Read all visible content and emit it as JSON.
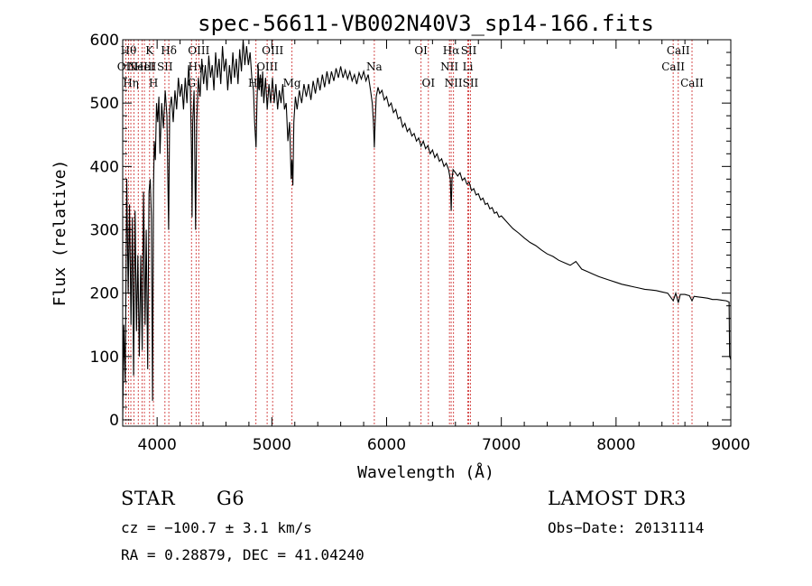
{
  "chart_data": {
    "type": "line",
    "title": "spec-56611-VB002N40V3_sp14-166.fits",
    "xlabel": "Wavelength (Å)",
    "ylabel": "Flux (relative)",
    "xlim": [
      3700,
      9000
    ],
    "ylim": [
      -10,
      600
    ],
    "xticks": [
      4000,
      5000,
      6000,
      7000,
      8000,
      9000
    ],
    "yticks": [
      0,
      100,
      200,
      300,
      400,
      500,
      600
    ],
    "series": [
      {
        "name": "spectrum",
        "points": [
          [
            3700,
            0
          ],
          [
            3710,
            150
          ],
          [
            3722,
            60
          ],
          [
            3735,
            380
          ],
          [
            3748,
            200
          ],
          [
            3760,
            340
          ],
          [
            3772,
            150
          ],
          [
            3785,
            320
          ],
          [
            3795,
            70
          ],
          [
            3808,
            330
          ],
          [
            3820,
            140
          ],
          [
            3832,
            260
          ],
          [
            3845,
            100
          ],
          [
            3858,
            260
          ],
          [
            3870,
            110
          ],
          [
            3882,
            360
          ],
          [
            3895,
            150
          ],
          [
            3905,
            300
          ],
          [
            3918,
            80
          ],
          [
            3930,
            360
          ],
          [
            3940,
            380
          ],
          [
            3950,
            320
          ],
          [
            3960,
            30
          ],
          [
            3968,
            360
          ],
          [
            3975,
            440
          ],
          [
            3985,
            410
          ],
          [
            3995,
            500
          ],
          [
            4005,
            470
          ],
          [
            4015,
            510
          ],
          [
            4025,
            420
          ],
          [
            4040,
            500
          ],
          [
            4055,
            460
          ],
          [
            4070,
            520
          ],
          [
            4085,
            480
          ],
          [
            4100,
            300
          ],
          [
            4110,
            490
          ],
          [
            4125,
            510
          ],
          [
            4140,
            470
          ],
          [
            4155,
            520
          ],
          [
            4170,
            490
          ],
          [
            4185,
            540
          ],
          [
            4200,
            510
          ],
          [
            4215,
            530
          ],
          [
            4230,
            490
          ],
          [
            4245,
            540
          ],
          [
            4260,
            500
          ],
          [
            4275,
            560
          ],
          [
            4290,
            520
          ],
          [
            4300,
            420
          ],
          [
            4305,
            320
          ],
          [
            4310,
            470
          ],
          [
            4322,
            520
          ],
          [
            4335,
            300
          ],
          [
            4345,
            470
          ],
          [
            4360,
            540
          ],
          [
            4375,
            510
          ],
          [
            4390,
            570
          ],
          [
            4405,
            530
          ],
          [
            4420,
            560
          ],
          [
            4435,
            520
          ],
          [
            4450,
            575
          ],
          [
            4465,
            540
          ],
          [
            4480,
            560
          ],
          [
            4495,
            520
          ],
          [
            4510,
            580
          ],
          [
            4525,
            540
          ],
          [
            4540,
            570
          ],
          [
            4555,
            530
          ],
          [
            4570,
            590
          ],
          [
            4585,
            550
          ],
          [
            4600,
            570
          ],
          [
            4615,
            520
          ],
          [
            4630,
            560
          ],
          [
            4645,
            530
          ],
          [
            4660,
            580
          ],
          [
            4675,
            540
          ],
          [
            4690,
            570
          ],
          [
            4705,
            530
          ],
          [
            4720,
            585
          ],
          [
            4735,
            550
          ],
          [
            4750,
            600
          ],
          [
            4765,
            560
          ],
          [
            4780,
            590
          ],
          [
            4795,
            560
          ],
          [
            4810,
            580
          ],
          [
            4825,
            540
          ],
          [
            4840,
            520
          ],
          [
            4850,
            470
          ],
          [
            4862,
            430
          ],
          [
            4870,
            500
          ],
          [
            4880,
            560
          ],
          [
            4890,
            520
          ],
          [
            4900,
            545
          ],
          [
            4910,
            510
          ],
          [
            4920,
            550
          ],
          [
            4930,
            500
          ],
          [
            4945,
            540
          ],
          [
            4960,
            490
          ],
          [
            4975,
            530
          ],
          [
            4990,
            500
          ],
          [
            5005,
            540
          ],
          [
            5020,
            500
          ],
          [
            5035,
            530
          ],
          [
            5050,
            490
          ],
          [
            5065,
            520
          ],
          [
            5080,
            500
          ],
          [
            5095,
            530
          ],
          [
            5110,
            490
          ],
          [
            5125,
            500
          ],
          [
            5140,
            440
          ],
          [
            5155,
            470
          ],
          [
            5168,
            380
          ],
          [
            5175,
            410
          ],
          [
            5183,
            370
          ],
          [
            5192,
            470
          ],
          [
            5205,
            510
          ],
          [
            5220,
            490
          ],
          [
            5240,
            520
          ],
          [
            5260,
            500
          ],
          [
            5280,
            530
          ],
          [
            5300,
            510
          ],
          [
            5320,
            530
          ],
          [
            5340,
            505
          ],
          [
            5360,
            535
          ],
          [
            5380,
            515
          ],
          [
            5400,
            540
          ],
          [
            5420,
            520
          ],
          [
            5440,
            545
          ],
          [
            5460,
            525
          ],
          [
            5480,
            550
          ],
          [
            5500,
            530
          ],
          [
            5520,
            550
          ],
          [
            5540,
            535
          ],
          [
            5560,
            555
          ],
          [
            5580,
            540
          ],
          [
            5600,
            558
          ],
          [
            5620,
            540
          ],
          [
            5640,
            552
          ],
          [
            5660,
            538
          ],
          [
            5680,
            550
          ],
          [
            5700,
            535
          ],
          [
            5720,
            545
          ],
          [
            5740,
            530
          ],
          [
            5760,
            548
          ],
          [
            5780,
            538
          ],
          [
            5800,
            550
          ],
          [
            5820,
            535
          ],
          [
            5840,
            545
          ],
          [
            5860,
            520
          ],
          [
            5875,
            500
          ],
          [
            5885,
            470
          ],
          [
            5893,
            430
          ],
          [
            5900,
            470
          ],
          [
            5910,
            510
          ],
          [
            5925,
            525
          ],
          [
            5940,
            515
          ],
          [
            5960,
            520
          ],
          [
            5980,
            505
          ],
          [
            6000,
            510
          ],
          [
            6020,
            495
          ],
          [
            6040,
            500
          ],
          [
            6060,
            485
          ],
          [
            6080,
            490
          ],
          [
            6100,
            475
          ],
          [
            6120,
            478
          ],
          [
            6140,
            462
          ],
          [
            6160,
            468
          ],
          [
            6180,
            455
          ],
          [
            6200,
            460
          ],
          [
            6220,
            448
          ],
          [
            6240,
            452
          ],
          [
            6260,
            440
          ],
          [
            6280,
            445
          ],
          [
            6300,
            432
          ],
          [
            6320,
            440
          ],
          [
            6340,
            428
          ],
          [
            6360,
            433
          ],
          [
            6380,
            420
          ],
          [
            6400,
            426
          ],
          [
            6420,
            414
          ],
          [
            6440,
            420
          ],
          [
            6460,
            408
          ],
          [
            6480,
            412
          ],
          [
            6500,
            400
          ],
          [
            6520,
            405
          ],
          [
            6540,
            395
          ],
          [
            6555,
            380
          ],
          [
            6563,
            330
          ],
          [
            6570,
            380
          ],
          [
            6580,
            395
          ],
          [
            6600,
            390
          ],
          [
            6620,
            385
          ],
          [
            6640,
            390
          ],
          [
            6660,
            378
          ],
          [
            6680,
            382
          ],
          [
            6700,
            372
          ],
          [
            6720,
            375
          ],
          [
            6740,
            362
          ],
          [
            6760,
            365
          ],
          [
            6780,
            355
          ],
          [
            6800,
            357
          ],
          [
            6820,
            347
          ],
          [
            6840,
            350
          ],
          [
            6860,
            340
          ],
          [
            6880,
            342
          ],
          [
            6900,
            333
          ],
          [
            6920,
            335
          ],
          [
            6940,
            326
          ],
          [
            6960,
            328
          ],
          [
            6980,
            320
          ],
          [
            7000,
            322
          ],
          [
            7050,
            312
          ],
          [
            7100,
            302
          ],
          [
            7150,
            295
          ],
          [
            7200,
            287
          ],
          [
            7250,
            280
          ],
          [
            7300,
            275
          ],
          [
            7350,
            268
          ],
          [
            7400,
            262
          ],
          [
            7450,
            258
          ],
          [
            7500,
            252
          ],
          [
            7550,
            248
          ],
          [
            7600,
            244
          ],
          [
            7650,
            250
          ],
          [
            7700,
            238
          ],
          [
            7750,
            234
          ],
          [
            7800,
            230
          ],
          [
            7850,
            226
          ],
          [
            7900,
            223
          ],
          [
            7950,
            220
          ],
          [
            8000,
            217
          ],
          [
            8050,
            214
          ],
          [
            8100,
            212
          ],
          [
            8150,
            210
          ],
          [
            8200,
            208
          ],
          [
            8250,
            206
          ],
          [
            8300,
            205
          ],
          [
            8350,
            204
          ],
          [
            8400,
            202
          ],
          [
            8450,
            200
          ],
          [
            8498,
            188
          ],
          [
            8520,
            200
          ],
          [
            8542,
            185
          ],
          [
            8560,
            198
          ],
          [
            8600,
            198
          ],
          [
            8640,
            196
          ],
          [
            8662,
            188
          ],
          [
            8680,
            195
          ],
          [
            8720,
            194
          ],
          [
            8760,
            193
          ],
          [
            8800,
            192
          ],
          [
            8840,
            190
          ],
          [
            8880,
            190
          ],
          [
            8920,
            189
          ],
          [
            8960,
            188
          ],
          [
            8985,
            186
          ],
          [
            8990,
            100
          ],
          [
            9000,
            95
          ]
        ]
      }
    ],
    "spectral_lines": [
      {
        "wavelength": 3727,
        "label": "OII",
        "row": 1
      },
      {
        "wavelength": 3751,
        "label": "Hθ",
        "row": 0
      },
      {
        "wavelength": 3771,
        "label": "Hη",
        "row": 2
      },
      {
        "wavelength": 3798,
        "label": "",
        "row": 2
      },
      {
        "wavelength": 3836,
        "label": "",
        "row": 2
      },
      {
        "wavelength": 3869,
        "label": "NeIII",
        "row": 1
      },
      {
        "wavelength": 3889,
        "label": "HeI",
        "row": 1
      },
      {
        "wavelength": 3934,
        "label": "K",
        "row": 0
      },
      {
        "wavelength": 3968,
        "label": "H",
        "row": 2
      },
      {
        "wavelength": 4068,
        "label": "SII",
        "row": 1
      },
      {
        "wavelength": 4102,
        "label": "Hδ",
        "row": 0
      },
      {
        "wavelength": 4300,
        "label": "G",
        "row": 2
      },
      {
        "wavelength": 4340,
        "label": "Hγ",
        "row": 1
      },
      {
        "wavelength": 4363,
        "label": "OIII",
        "row": 0
      },
      {
        "wavelength": 4861,
        "label": "Hβ",
        "row": 2
      },
      {
        "wavelength": 4959,
        "label": "OIII",
        "row": 1
      },
      {
        "wavelength": 5007,
        "label": "OIII",
        "row": 0
      },
      {
        "wavelength": 5175,
        "label": "Mg",
        "row": 2
      },
      {
        "wavelength": 5893,
        "label": "Na",
        "row": 1
      },
      {
        "wavelength": 6300,
        "label": "OI",
        "row": 0
      },
      {
        "wavelength": 6364,
        "label": "OI",
        "row": 2
      },
      {
        "wavelength": 6548,
        "label": "NII",
        "row": 1
      },
      {
        "wavelength": 6563,
        "label": "Hα",
        "row": 0
      },
      {
        "wavelength": 6583,
        "label": "NII",
        "row": 2
      },
      {
        "wavelength": 6708,
        "label": "Li",
        "row": 1
      },
      {
        "wavelength": 6716,
        "label": "SII",
        "row": 0
      },
      {
        "wavelength": 6731,
        "label": "SII",
        "row": 2
      },
      {
        "wavelength": 8498,
        "label": "CaII",
        "row": 1
      },
      {
        "wavelength": 8542,
        "label": "CaII",
        "row": 0
      },
      {
        "wavelength": 8662,
        "label": "CaII",
        "row": 2
      }
    ]
  },
  "info": {
    "object_class": "STAR",
    "subclass": "G6",
    "survey": "LAMOST DR3",
    "cz": "cz = −100.7 ± 3.1 km/s",
    "obs_date": "Obs−Date: 20131114",
    "coords": "RA =   0.28879, DEC =  41.04240"
  },
  "colors": {
    "spectrum": "#000000",
    "line_marker": "#cc2222",
    "background": "#ffffff"
  }
}
